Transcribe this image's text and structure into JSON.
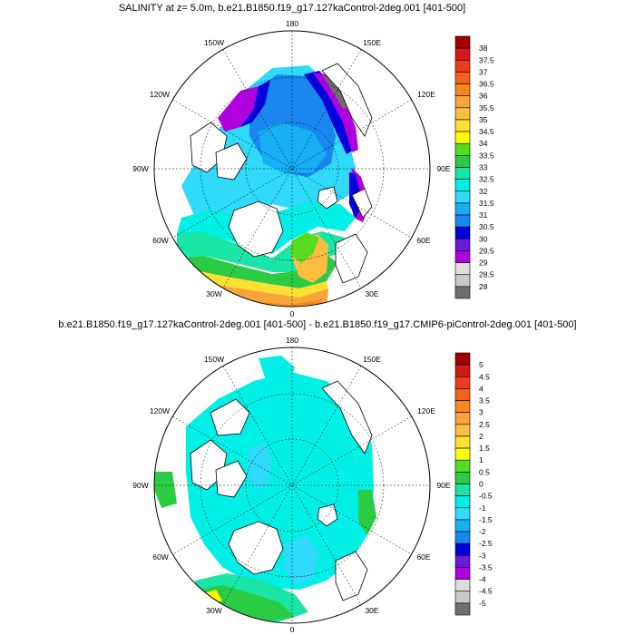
{
  "panel1": {
    "title": "SALINITY at z=   5.0m, b.e21.B1850.f19_g17.127kaControl-2deg.001 [401-500]",
    "lon_labels": {
      "top": "180",
      "tl": "150W",
      "tr": "150E",
      "ul": "120W",
      "ur": "120E",
      "l": "90W",
      "r": "90E",
      "ll": "60W",
      "lr": "60E",
      "bl": "30W",
      "br": "30E",
      "bottom": "0"
    },
    "colorbar": {
      "labels": [
        "38",
        "37.5",
        "37",
        "36.5",
        "36",
        "35.5",
        "35",
        "34.5",
        "34",
        "33.5",
        "33",
        "32.5",
        "32",
        "31.5",
        "31",
        "30.5",
        "30",
        "29.5",
        "29",
        "28.5",
        "28"
      ],
      "colors": [
        "#a00000",
        "#d21a1a",
        "#f03a1c",
        "#f26418",
        "#f48a1e",
        "#f7a53a",
        "#fdbe40",
        "#fde031",
        "#fdfc02",
        "#55dc1f",
        "#2ccb44",
        "#19e6a6",
        "#00f0e6",
        "#30dafa",
        "#17aef5",
        "#1a86ef",
        "#0000dd",
        "#6a1bd8",
        "#b100e0",
        "#dddddd",
        "#c8c8c8",
        "#6e6e6e"
      ]
    }
  },
  "panel2": {
    "title": "b.e21.B1850.f19_g17.127kaControl-2deg.001 [401-500] - b.e21.B1850.f19_g17.CMIP6-piControl-2deg.001 [401-500]",
    "lon_labels": {
      "top": "180",
      "tl": "150W",
      "tr": "150E",
      "ul": "120W",
      "ur": "120E",
      "l": "90W",
      "r": "90E",
      "ll": "60W",
      "lr": "60E",
      "bl": "30W",
      "br": "30E",
      "bottom": "0"
    },
    "colorbar": {
      "labels": [
        "5",
        "4.5",
        "4",
        "3.5",
        "3",
        "2.5",
        "2",
        "1.5",
        "1",
        "0.5",
        "0",
        "-0.5",
        "-1",
        "-1.5",
        "-2",
        "-2.5",
        "-3",
        "-3.5",
        "-4",
        "-4.5",
        "-5"
      ],
      "colors": [
        "#a00000",
        "#d21a1a",
        "#f03a1c",
        "#f26418",
        "#f48a1e",
        "#f7a53a",
        "#fdbe40",
        "#fde031",
        "#fdfc02",
        "#55dc1f",
        "#2ccb44",
        "#19e6a6",
        "#00f0e6",
        "#30dafa",
        "#17aef5",
        "#1a86ef",
        "#0000dd",
        "#6a1bd8",
        "#b100e0",
        "#dddddd",
        "#c8c8c8",
        "#6e6e6e"
      ]
    }
  }
}
